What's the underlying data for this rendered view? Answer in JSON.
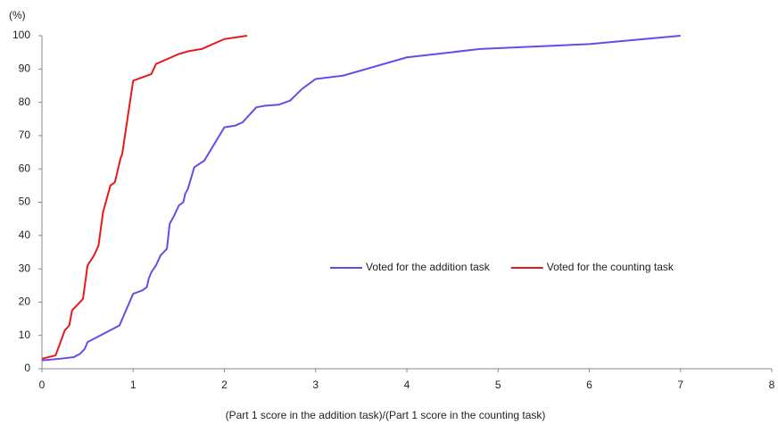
{
  "chart_data": {
    "type": "line",
    "y_unit_label": "(%)",
    "x_label": "(Part 1 score in the addition task)/(Part 1 score in the counting task)",
    "xlim": [
      0,
      8
    ],
    "xticks": [
      0,
      1,
      2,
      3,
      4,
      5,
      6,
      7,
      8
    ],
    "ylim": [
      0,
      100
    ],
    "yticks": [
      0,
      10,
      20,
      30,
      40,
      50,
      60,
      70,
      80,
      90,
      100
    ],
    "grid": false,
    "legend": "center-right",
    "series": [
      {
        "name": "Voted for the addition task",
        "color": "#6a4be8",
        "x": [
          0,
          0.2,
          0.35,
          0.42,
          0.47,
          0.5,
          0.85,
          1,
          1.1,
          1.15,
          1.17,
          1.2,
          1.25,
          1.3,
          1.37,
          1.4,
          1.45,
          1.5,
          1.55,
          1.57,
          1.6,
          1.67,
          1.78,
          2,
          2.12,
          2.2,
          2.35,
          2.45,
          2.6,
          2.72,
          2.85,
          3,
          3.3,
          4,
          4.8,
          6,
          7
        ],
        "values": [
          2.5,
          3,
          3.5,
          4.5,
          6,
          8,
          13,
          22.5,
          23.5,
          24.5,
          27,
          29,
          31,
          34,
          36,
          43.5,
          46,
          49,
          50,
          52.5,
          54,
          60.5,
          62.5,
          72.5,
          73,
          74,
          78.5,
          79,
          79.3,
          80.5,
          84,
          87,
          88,
          93.5,
          96,
          97.5,
          100
        ]
      },
      {
        "name": "Voted for the counting task",
        "color": "#e51a1a",
        "x": [
          0,
          0.15,
          0.25,
          0.3,
          0.33,
          0.4,
          0.45,
          0.5,
          0.57,
          0.62,
          0.67,
          0.75,
          0.8,
          0.86,
          0.88,
          1,
          1.2,
          1.25,
          1.5,
          1.6,
          1.75,
          2,
          2.25
        ],
        "values": [
          3,
          4,
          11.5,
          13,
          17.5,
          19.5,
          21,
          31,
          34,
          37,
          47,
          55,
          56,
          63,
          64.5,
          86.5,
          88.5,
          91.5,
          94.5,
          95.3,
          96,
          99,
          100
        ]
      }
    ]
  }
}
